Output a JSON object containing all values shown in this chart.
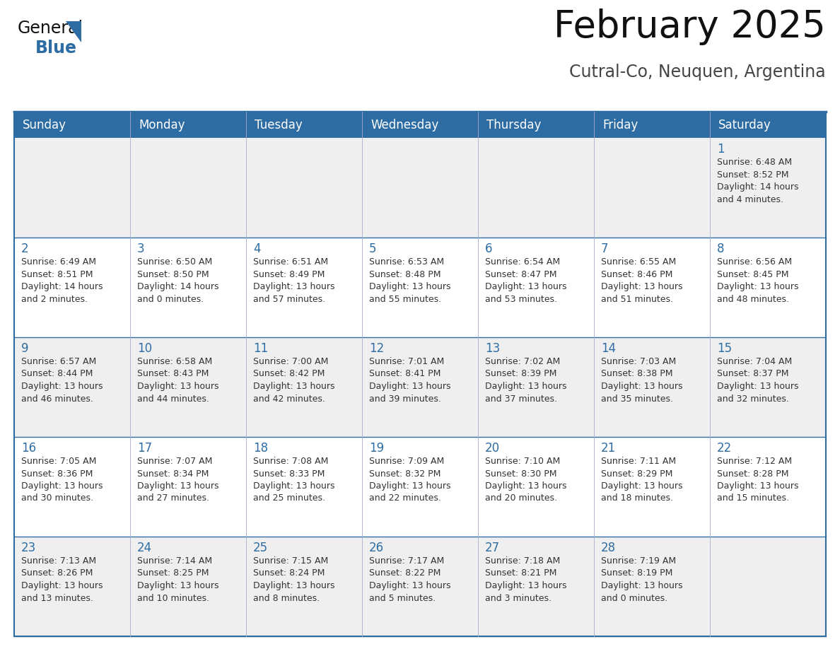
{
  "title": "February 2025",
  "subtitle": "Cutral-Co, Neuquen, Argentina",
  "header_bg": "#2E6DA4",
  "header_text_color": "#FFFFFF",
  "cell_bg_odd": "#EFEFEF",
  "cell_bg_even": "#FFFFFF",
  "day_number_color": "#2E6DA4",
  "info_text_color": "#333333",
  "border_color": "#2E6DA4",
  "line_color": "#9999BB",
  "days_of_week": [
    "Sunday",
    "Monday",
    "Tuesday",
    "Wednesday",
    "Thursday",
    "Friday",
    "Saturday"
  ],
  "weeks": [
    [
      {
        "day": null,
        "info": null
      },
      {
        "day": null,
        "info": null
      },
      {
        "day": null,
        "info": null
      },
      {
        "day": null,
        "info": null
      },
      {
        "day": null,
        "info": null
      },
      {
        "day": null,
        "info": null
      },
      {
        "day": 1,
        "info": "Sunrise: 6:48 AM\nSunset: 8:52 PM\nDaylight: 14 hours\nand 4 minutes."
      }
    ],
    [
      {
        "day": 2,
        "info": "Sunrise: 6:49 AM\nSunset: 8:51 PM\nDaylight: 14 hours\nand 2 minutes."
      },
      {
        "day": 3,
        "info": "Sunrise: 6:50 AM\nSunset: 8:50 PM\nDaylight: 14 hours\nand 0 minutes."
      },
      {
        "day": 4,
        "info": "Sunrise: 6:51 AM\nSunset: 8:49 PM\nDaylight: 13 hours\nand 57 minutes."
      },
      {
        "day": 5,
        "info": "Sunrise: 6:53 AM\nSunset: 8:48 PM\nDaylight: 13 hours\nand 55 minutes."
      },
      {
        "day": 6,
        "info": "Sunrise: 6:54 AM\nSunset: 8:47 PM\nDaylight: 13 hours\nand 53 minutes."
      },
      {
        "day": 7,
        "info": "Sunrise: 6:55 AM\nSunset: 8:46 PM\nDaylight: 13 hours\nand 51 minutes."
      },
      {
        "day": 8,
        "info": "Sunrise: 6:56 AM\nSunset: 8:45 PM\nDaylight: 13 hours\nand 48 minutes."
      }
    ],
    [
      {
        "day": 9,
        "info": "Sunrise: 6:57 AM\nSunset: 8:44 PM\nDaylight: 13 hours\nand 46 minutes."
      },
      {
        "day": 10,
        "info": "Sunrise: 6:58 AM\nSunset: 8:43 PM\nDaylight: 13 hours\nand 44 minutes."
      },
      {
        "day": 11,
        "info": "Sunrise: 7:00 AM\nSunset: 8:42 PM\nDaylight: 13 hours\nand 42 minutes."
      },
      {
        "day": 12,
        "info": "Sunrise: 7:01 AM\nSunset: 8:41 PM\nDaylight: 13 hours\nand 39 minutes."
      },
      {
        "day": 13,
        "info": "Sunrise: 7:02 AM\nSunset: 8:39 PM\nDaylight: 13 hours\nand 37 minutes."
      },
      {
        "day": 14,
        "info": "Sunrise: 7:03 AM\nSunset: 8:38 PM\nDaylight: 13 hours\nand 35 minutes."
      },
      {
        "day": 15,
        "info": "Sunrise: 7:04 AM\nSunset: 8:37 PM\nDaylight: 13 hours\nand 32 minutes."
      }
    ],
    [
      {
        "day": 16,
        "info": "Sunrise: 7:05 AM\nSunset: 8:36 PM\nDaylight: 13 hours\nand 30 minutes."
      },
      {
        "day": 17,
        "info": "Sunrise: 7:07 AM\nSunset: 8:34 PM\nDaylight: 13 hours\nand 27 minutes."
      },
      {
        "day": 18,
        "info": "Sunrise: 7:08 AM\nSunset: 8:33 PM\nDaylight: 13 hours\nand 25 minutes."
      },
      {
        "day": 19,
        "info": "Sunrise: 7:09 AM\nSunset: 8:32 PM\nDaylight: 13 hours\nand 22 minutes."
      },
      {
        "day": 20,
        "info": "Sunrise: 7:10 AM\nSunset: 8:30 PM\nDaylight: 13 hours\nand 20 minutes."
      },
      {
        "day": 21,
        "info": "Sunrise: 7:11 AM\nSunset: 8:29 PM\nDaylight: 13 hours\nand 18 minutes."
      },
      {
        "day": 22,
        "info": "Sunrise: 7:12 AM\nSunset: 8:28 PM\nDaylight: 13 hours\nand 15 minutes."
      }
    ],
    [
      {
        "day": 23,
        "info": "Sunrise: 7:13 AM\nSunset: 8:26 PM\nDaylight: 13 hours\nand 13 minutes."
      },
      {
        "day": 24,
        "info": "Sunrise: 7:14 AM\nSunset: 8:25 PM\nDaylight: 13 hours\nand 10 minutes."
      },
      {
        "day": 25,
        "info": "Sunrise: 7:15 AM\nSunset: 8:24 PM\nDaylight: 13 hours\nand 8 minutes."
      },
      {
        "day": 26,
        "info": "Sunrise: 7:17 AM\nSunset: 8:22 PM\nDaylight: 13 hours\nand 5 minutes."
      },
      {
        "day": 27,
        "info": "Sunrise: 7:18 AM\nSunset: 8:21 PM\nDaylight: 13 hours\nand 3 minutes."
      },
      {
        "day": 28,
        "info": "Sunrise: 7:19 AM\nSunset: 8:19 PM\nDaylight: 13 hours\nand 0 minutes."
      },
      {
        "day": null,
        "info": null
      }
    ]
  ],
  "title_fontsize": 38,
  "subtitle_fontsize": 17,
  "header_fontsize": 12,
  "day_num_fontsize": 12,
  "info_fontsize": 9
}
